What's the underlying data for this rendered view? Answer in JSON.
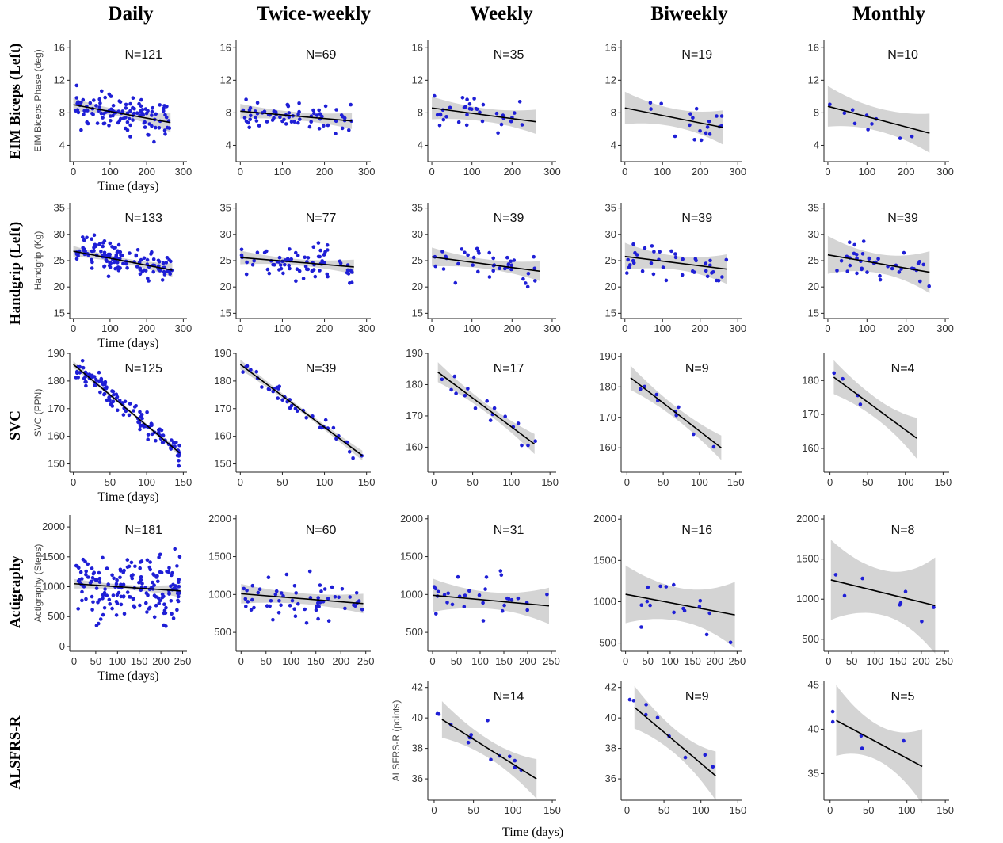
{
  "columns": [
    "Daily",
    "Twice-weekly",
    "Weekly",
    "Biweekly",
    "Monthly"
  ],
  "rows": [
    "EIM Biceps (Left)",
    "Handgrip (Left)",
    "SVC",
    "Actigraphy",
    "ALSFRS-R"
  ],
  "bottom_xlabel": "Time (days)",
  "colors": {
    "points": "#1f1fd6",
    "ribbon": "#d4d4d4",
    "line": "#000000"
  },
  "chart_data": [
    {
      "type": "scatter",
      "row": "EIM Biceps (Left)",
      "column": "Daily",
      "n_label": "N=121",
      "ylabel": "EIM Biceps Phase (deg)",
      "xlabel": "Time (days)",
      "xticks": [
        0,
        100,
        200,
        300
      ],
      "yticks": [
        4,
        8,
        12,
        16
      ],
      "xlim": [
        -10,
        310
      ],
      "ylim": [
        2,
        17
      ],
      "trend": {
        "x": [
          0,
          265
        ],
        "y": [
          9.0,
          6.8
        ]
      },
      "band_halfwidth": [
        0.8,
        0.4,
        1.2
      ],
      "seed": 11,
      "gen": {
        "xmax": 265,
        "sd": 1.9,
        "clamp": [
          4,
          13.5
        ]
      }
    },
    {
      "type": "scatter",
      "row": "EIM Biceps (Left)",
      "column": "Twice-weekly",
      "n_label": "N=69",
      "xticks": [
        0,
        100,
        200,
        300
      ],
      "yticks": [
        4,
        8,
        12,
        16
      ],
      "xlim": [
        -10,
        310
      ],
      "ylim": [
        2,
        17
      ],
      "trend": {
        "x": [
          0,
          265
        ],
        "y": [
          8.2,
          7.0
        ]
      },
      "band_halfwidth": [
        0.9,
        0.5,
        1.0
      ],
      "seed": 23,
      "gen": {
        "xmax": 265,
        "sd": 1.6,
        "clamp": [
          4,
          11
        ]
      }
    },
    {
      "type": "scatter",
      "row": "EIM Biceps (Left)",
      "column": "Weekly",
      "n_label": "N=35",
      "xticks": [
        0,
        100,
        200,
        300
      ],
      "yticks": [
        4,
        8,
        12,
        16
      ],
      "xlim": [
        -10,
        310
      ],
      "ylim": [
        2,
        17
      ],
      "trend": {
        "x": [
          0,
          260
        ],
        "y": [
          8.6,
          6.9
        ]
      },
      "band_halfwidth": [
        1.4,
        0.8,
        1.5
      ],
      "seed": 37,
      "gen": {
        "xmax": 260,
        "sd": 1.7,
        "clamp": [
          4.5,
          11
        ]
      }
    },
    {
      "type": "scatter",
      "row": "EIM Biceps (Left)",
      "column": "Biweekly",
      "n_label": "N=19",
      "xticks": [
        0,
        100,
        200,
        300
      ],
      "yticks": [
        4,
        8,
        12,
        16
      ],
      "xlim": [
        -10,
        310
      ],
      "ylim": [
        2,
        17
      ],
      "trend": {
        "x": [
          0,
          260
        ],
        "y": [
          8.6,
          6.2
        ]
      },
      "band_halfwidth": [
        2.0,
        1.1,
        2.1
      ],
      "seed": 41,
      "gen": {
        "xmax": 260,
        "sd": 1.9,
        "clamp": [
          4,
          11
        ]
      }
    },
    {
      "type": "scatter",
      "row": "EIM Biceps (Left)",
      "column": "Monthly",
      "n_label": "N=10",
      "xticks": [
        0,
        100,
        200,
        300
      ],
      "yticks": [
        4,
        8,
        12,
        16
      ],
      "xlim": [
        -10,
        310
      ],
      "ylim": [
        2,
        17
      ],
      "trend": {
        "x": [
          0,
          260
        ],
        "y": [
          8.8,
          5.5
        ]
      },
      "band_halfwidth": [
        2.5,
        1.4,
        2.4
      ],
      "seed": 53,
      "gen": {
        "xmax": 260,
        "sd": 1.6,
        "clamp": [
          4.5,
          11
        ]
      }
    },
    {
      "type": "scatter",
      "row": "Handgrip (Left)",
      "column": "Daily",
      "n_label": "N=133",
      "ylabel": "Handgrip (Kg)",
      "xlabel": "Time (days)",
      "xticks": [
        0,
        100,
        200,
        300
      ],
      "yticks": [
        15,
        20,
        25,
        30,
        35
      ],
      "xlim": [
        -10,
        310
      ],
      "ylim": [
        14,
        36
      ],
      "trend": {
        "x": [
          0,
          270
        ],
        "y": [
          26.8,
          23.2
        ]
      },
      "band_halfwidth": [
        1.0,
        0.5,
        1.3
      ],
      "seed": 61,
      "gen": {
        "xmax": 270,
        "sd": 2.5,
        "clamp": [
          19,
          32
        ]
      }
    },
    {
      "type": "scatter",
      "row": "Handgrip (Left)",
      "column": "Twice-weekly",
      "n_label": "N=77",
      "xticks": [
        0,
        100,
        200,
        300
      ],
      "yticks": [
        15,
        20,
        25,
        30,
        35
      ],
      "xlim": [
        -10,
        310
      ],
      "ylim": [
        14,
        36
      ],
      "trend": {
        "x": [
          0,
          270
        ],
        "y": [
          25.6,
          23.8
        ]
      },
      "band_halfwidth": [
        1.3,
        0.6,
        1.4
      ],
      "seed": 71,
      "gen": {
        "xmax": 270,
        "sd": 2.7,
        "clamp": [
          18.5,
          31
        ]
      }
    },
    {
      "type": "scatter",
      "row": "Handgrip (Left)",
      "column": "Weekly",
      "n_label": "N=39",
      "xticks": [
        0,
        100,
        200,
        300
      ],
      "yticks": [
        15,
        20,
        25,
        30,
        35
      ],
      "xlim": [
        -10,
        310
      ],
      "ylim": [
        14,
        36
      ],
      "trend": {
        "x": [
          0,
          270
        ],
        "y": [
          25.7,
          23.0
        ]
      },
      "band_halfwidth": [
        1.8,
        0.9,
        1.9
      ],
      "seed": 83,
      "gen": {
        "xmax": 270,
        "sd": 2.8,
        "clamp": [
          18.5,
          30.5
        ]
      }
    },
    {
      "type": "scatter",
      "row": "Handgrip (Left)",
      "column": "Biweekly",
      "n_label": "N=39",
      "xticks": [
        0,
        100,
        200,
        300
      ],
      "yticks": [
        15,
        20,
        25,
        30,
        35
      ],
      "xlim": [
        -10,
        310
      ],
      "ylim": [
        14,
        36
      ],
      "trend": {
        "x": [
          0,
          270
        ],
        "y": [
          25.8,
          23.4
        ]
      },
      "band_halfwidth": [
        2.6,
        1.3,
        2.8
      ],
      "seed": 97,
      "gen": {
        "xmax": 270,
        "sd": 2.5,
        "clamp": [
          19.5,
          30
        ]
      }
    },
    {
      "type": "scatter",
      "row": "Handgrip (Left)",
      "column": "Monthly",
      "n_label": "N=39",
      "xticks": [
        0,
        100,
        200,
        300
      ],
      "yticks": [
        15,
        20,
        25,
        30,
        35
      ],
      "xlim": [
        -10,
        310
      ],
      "ylim": [
        14,
        36
      ],
      "trend": {
        "x": [
          0,
          260
        ],
        "y": [
          26.1,
          22.8
        ]
      },
      "band_halfwidth": [
        3.6,
        1.8,
        4.0
      ],
      "seed": 101,
      "gen": {
        "xmax": 260,
        "sd": 2.7,
        "clamp": [
          19.5,
          29
        ]
      }
    },
    {
      "type": "scatter",
      "row": "SVC",
      "column": "Daily",
      "n_label": "N=125",
      "ylabel": "SVC (PPN)",
      "xlabel": "Time (days)",
      "xticks": [
        0,
        50,
        100,
        150
      ],
      "yticks": [
        150,
        160,
        170,
        180,
        190
      ],
      "xlim": [
        -5,
        155
      ],
      "ylim": [
        147,
        190
      ],
      "trend": {
        "x": [
          0,
          145
        ],
        "y": [
          186,
          154
        ]
      },
      "band_halfwidth": [
        1.2,
        0.5,
        1.2
      ],
      "seed": 113,
      "gen": {
        "xmax": 145,
        "sd": 3.5,
        "clamp": [
          148,
          189
        ]
      }
    },
    {
      "type": "scatter",
      "row": "SVC",
      "column": "Twice-weekly",
      "n_label": "N=39",
      "xticks": [
        0,
        50,
        100,
        150
      ],
      "yticks": [
        150,
        160,
        170,
        180,
        190
      ],
      "xlim": [
        -5,
        155
      ],
      "ylim": [
        147,
        190
      ],
      "trend": {
        "x": [
          0,
          145
        ],
        "y": [
          186,
          153
        ]
      },
      "band_halfwidth": [
        1.8,
        0.8,
        1.8
      ],
      "seed": 127,
      "gen": {
        "xmax": 145,
        "sd": 3.0,
        "clamp": [
          148,
          189
        ]
      }
    },
    {
      "type": "scatter",
      "row": "SVC",
      "column": "Weekly",
      "n_label": "N=17",
      "xticks": [
        0,
        50,
        100,
        150
      ],
      "yticks": [
        160,
        170,
        180,
        190
      ],
      "xlim": [
        -8,
        158
      ],
      "ylim": [
        152,
        190
      ],
      "trend": {
        "x": [
          5,
          130
        ],
        "y": [
          184,
          161
        ]
      },
      "band_halfwidth": [
        3.2,
        1.4,
        3.2
      ],
      "seed": 131,
      "gen": {
        "xmax": 132,
        "sd": 3.0,
        "clamp": [
          153,
          188
        ]
      }
    },
    {
      "type": "scatter",
      "row": "SVC",
      "column": "Biweekly",
      "n_label": "N=9",
      "xticks": [
        0,
        50,
        100,
        150
      ],
      "yticks": [
        160,
        170,
        180,
        190
      ],
      "xlim": [
        -8,
        158
      ],
      "ylim": [
        152,
        191
      ],
      "trend": {
        "x": [
          5,
          130
        ],
        "y": [
          183,
          160
        ]
      },
      "band_halfwidth": [
        4.0,
        2.0,
        4.0
      ],
      "seed": 149,
      "gen": {
        "xmax": 132,
        "sd": 3.0,
        "clamp": [
          153,
          188
        ]
      }
    },
    {
      "type": "scatter",
      "row": "SVC",
      "column": "Monthly",
      "n_label": "N=4",
      "xticks": [
        0,
        50,
        100,
        150
      ],
      "yticks": [
        160,
        170,
        180
      ],
      "xlim": [
        -8,
        158
      ],
      "ylim": [
        153,
        188
      ],
      "trend": {
        "x": [
          5,
          115
        ],
        "y": [
          181,
          163
        ]
      },
      "band_halfwidth": [
        5.0,
        3.0,
        6.0
      ],
      "seed": 151,
      "gen": {
        "xmax": 118,
        "sd": 2.5,
        "clamp": [
          154,
          187
        ]
      }
    },
    {
      "type": "scatter",
      "row": "Actigraphy",
      "column": "Daily",
      "n_label": "N=181",
      "ylabel": "Actigraphy (Steps)",
      "xlabel": "Time (days)",
      "xticks": [
        0,
        50,
        100,
        150,
        200,
        250
      ],
      "yticks": [
        0,
        500,
        1000,
        1500,
        2000
      ],
      "xlim": [
        -10,
        260
      ],
      "ylim": [
        -80,
        2200
      ],
      "trend": {
        "x": [
          0,
          245
        ],
        "y": [
          1050,
          930
        ]
      },
      "band_halfwidth": [
        80,
        40,
        110
      ],
      "seed": 163,
      "gen": {
        "xmax": 245,
        "sd": 450,
        "clamp": [
          0,
          2100
        ]
      }
    },
    {
      "type": "scatter",
      "row": "Actigraphy",
      "column": "Twice-weekly",
      "n_label": "N=60",
      "xticks": [
        0,
        50,
        100,
        150,
        200,
        250
      ],
      "yticks": [
        500,
        1000,
        1500,
        2000
      ],
      "xlim": [
        -10,
        260
      ],
      "ylim": [
        250,
        2050
      ],
      "trend": {
        "x": [
          0,
          245
        ],
        "y": [
          1010,
          880
        ]
      },
      "band_halfwidth": [
        130,
        70,
        130
      ],
      "seed": 173,
      "gen": {
        "xmax": 245,
        "sd": 250,
        "clamp": [
          300,
          1600
        ]
      }
    },
    {
      "type": "scatter",
      "row": "Actigraphy",
      "column": "Weekly",
      "n_label": "N=31",
      "xticks": [
        0,
        50,
        100,
        150,
        200,
        250
      ],
      "yticks": [
        500,
        1000,
        1500,
        2000
      ],
      "xlim": [
        -10,
        260
      ],
      "ylim": [
        250,
        2050
      ],
      "trend": {
        "x": [
          0,
          245
        ],
        "y": [
          990,
          850
        ]
      },
      "band_halfwidth": [
        220,
        110,
        240
      ],
      "seed": 181,
      "gen": {
        "xmax": 245,
        "sd": 280,
        "clamp": [
          300,
          1600
        ]
      }
    },
    {
      "type": "scatter",
      "row": "Actigraphy",
      "column": "Biweekly",
      "n_label": "N=16",
      "xticks": [
        0,
        50,
        100,
        150,
        200,
        250
      ],
      "yticks": [
        500,
        1000,
        1500,
        2000
      ],
      "xlim": [
        -10,
        260
      ],
      "ylim": [
        400,
        2050
      ],
      "trend": {
        "x": [
          0,
          245
        ],
        "y": [
          1090,
          840
        ]
      },
      "band_halfwidth": [
        350,
        200,
        400
      ],
      "seed": 191,
      "gen": {
        "xmax": 245,
        "sd": 350,
        "clamp": [
          420,
          1600
        ]
      }
    },
    {
      "type": "scatter",
      "row": "Actigraphy",
      "column": "Monthly",
      "n_label": "N=8",
      "xticks": [
        0,
        50,
        100,
        150,
        200,
        250
      ],
      "yticks": [
        500,
        1000,
        1500,
        2000
      ],
      "xlim": [
        -10,
        260
      ],
      "ylim": [
        350,
        2050
      ],
      "trend": {
        "x": [
          5,
          230
        ],
        "y": [
          1240,
          920
        ]
      },
      "band_halfwidth": [
        500,
        280,
        600
      ],
      "seed": 197,
      "gen": {
        "xmax": 228,
        "sd": 320,
        "clamp": [
          450,
          1600
        ]
      }
    },
    {
      "type": "scatter",
      "row": "ALSFRS-R",
      "column": "Weekly",
      "n_label": "N=14",
      "ylabel": "ALSFRS-R (points)",
      "xticks": [
        0,
        50,
        100,
        150
      ],
      "yticks": [
        36,
        38,
        40,
        42
      ],
      "xlim": [
        -8,
        155
      ],
      "ylim": [
        34.6,
        42.4
      ],
      "trend": {
        "x": [
          10,
          130
        ],
        "y": [
          39.9,
          36.0
        ]
      },
      "band_halfwidth": [
        1.2,
        0.6,
        1.3
      ],
      "seed": 211,
      "gen": {
        "xmax": 130,
        "sd": 1.2,
        "clamp": [
          35,
          41.2
        ]
      }
    },
    {
      "type": "scatter",
      "row": "ALSFRS-R",
      "column": "Biweekly",
      "n_label": "N=9",
      "xticks": [
        0,
        50,
        100,
        150
      ],
      "yticks": [
        36,
        38,
        40,
        42
      ],
      "xlim": [
        -8,
        155
      ],
      "ylim": [
        34.6,
        42.4
      ],
      "trend": {
        "x": [
          10,
          120
        ],
        "y": [
          40.7,
          36.2
        ]
      },
      "band_halfwidth": [
        1.4,
        0.8,
        1.6
      ],
      "seed": 223,
      "gen": {
        "xmax": 122,
        "sd": 1.2,
        "clamp": [
          35,
          41.2
        ]
      }
    },
    {
      "type": "scatter",
      "row": "ALSFRS-R",
      "column": "Monthly",
      "n_label": "N=5",
      "xticks": [
        0,
        50,
        100,
        150
      ],
      "yticks": [
        35,
        40,
        45
      ],
      "xlim": [
        -8,
        155
      ],
      "ylim": [
        32,
        45.4
      ],
      "trend": {
        "x": [
          8,
          120
        ],
        "y": [
          41.0,
          35.8
        ]
      },
      "band_halfwidth": [
        4.0,
        2.0,
        4.2
      ],
      "seed": 229,
      "gen": {
        "xmax": 122,
        "sd": 2.0,
        "clamp": [
          34.5,
          42
        ]
      }
    }
  ]
}
